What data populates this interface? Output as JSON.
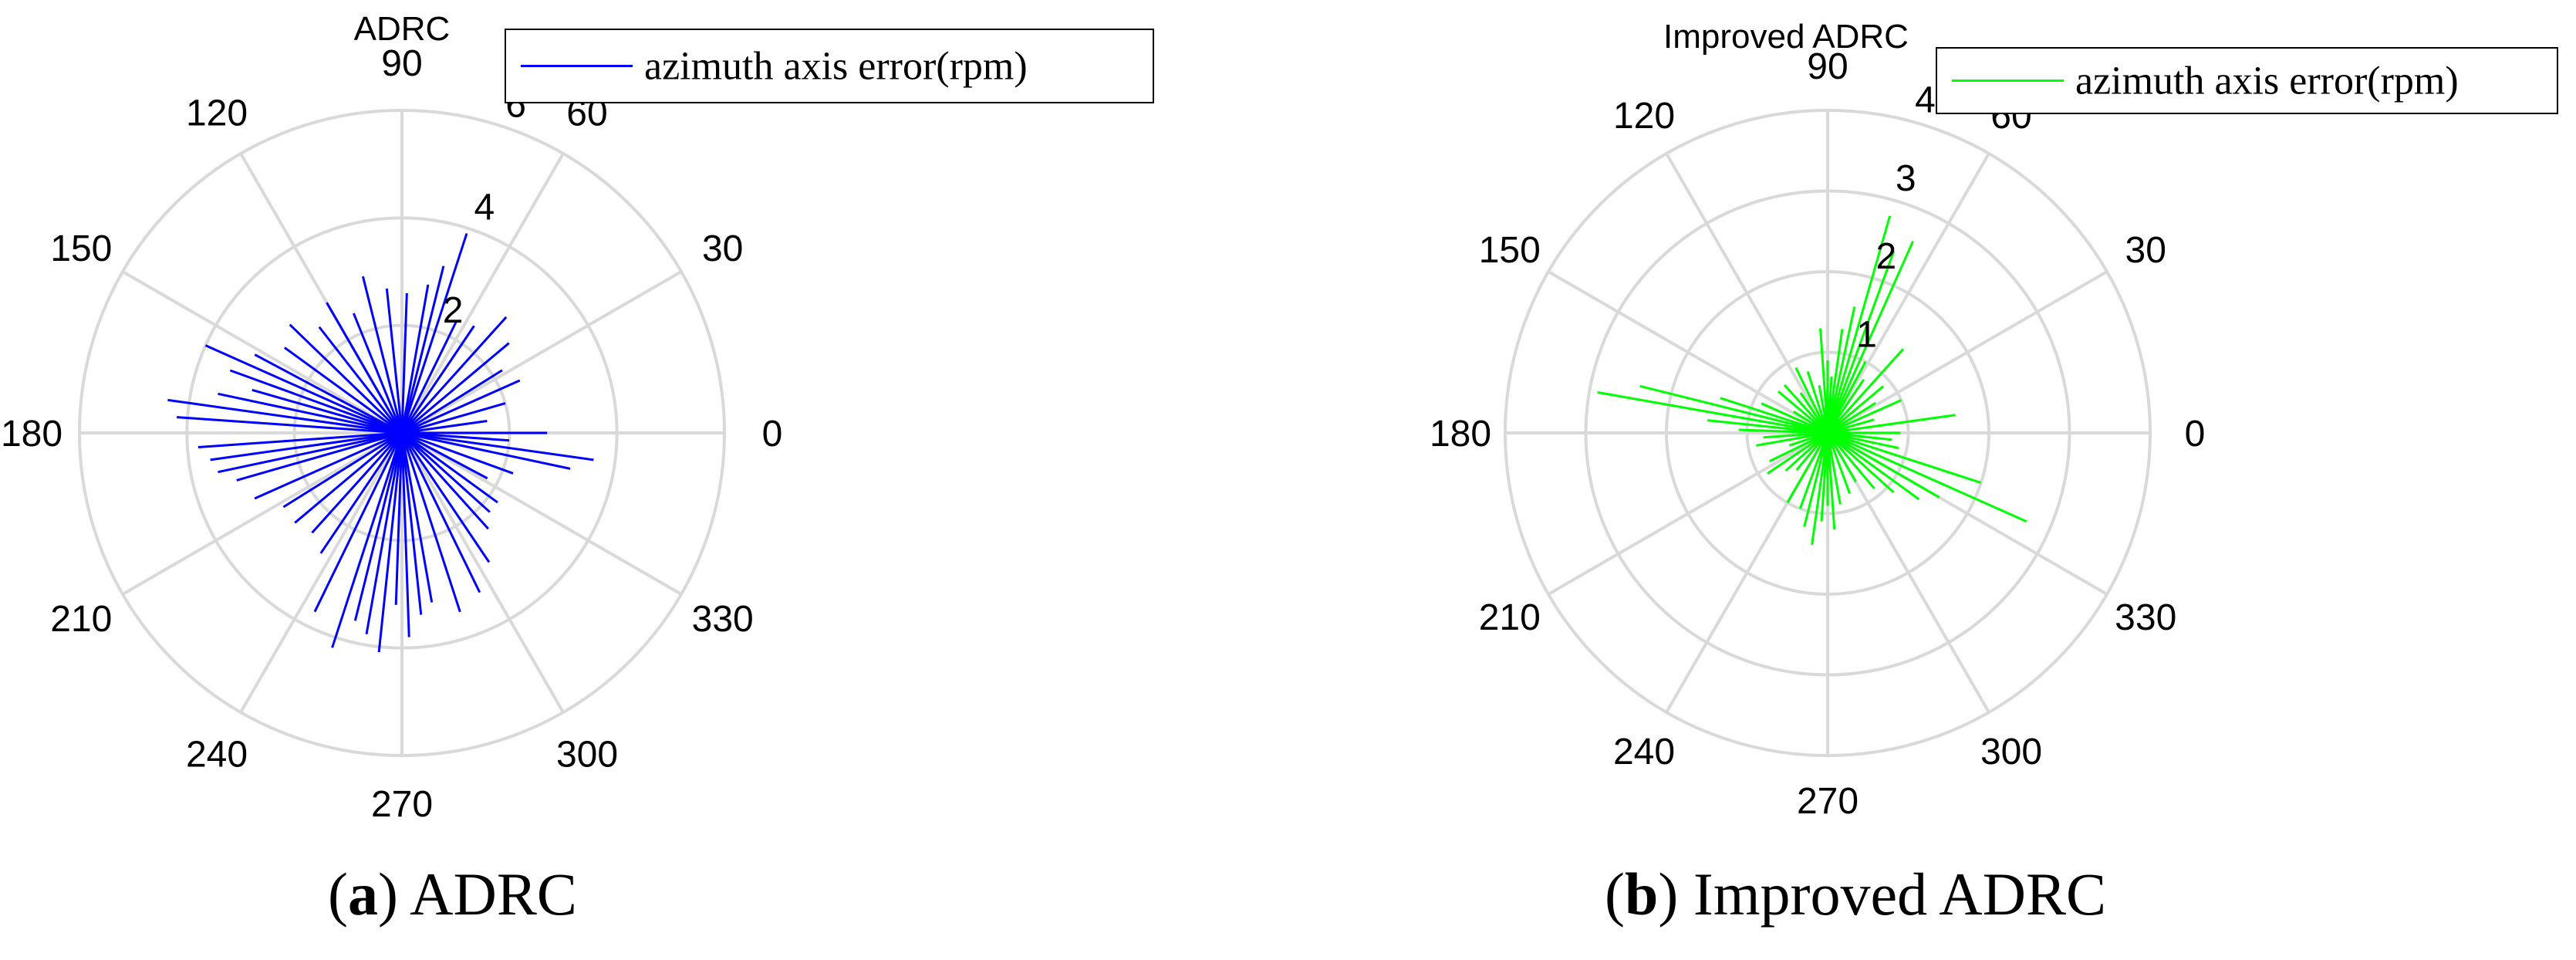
{
  "chart_data": [
    {
      "type": "polar",
      "title": "ADRC",
      "caption_letter": "a",
      "caption_text": ") ADRC",
      "angle_unit": "degrees",
      "angle_ticks": [
        "0",
        "30",
        "60",
        "90",
        "120",
        "150",
        "180",
        "210",
        "240",
        "270",
        "300",
        "330"
      ],
      "radial_ticks": [
        "2",
        "4",
        "6"
      ],
      "rlim": [
        0,
        6
      ],
      "grid": true,
      "legend_position": "top-right",
      "series": [
        {
          "name": "azimuth axis error(rpm)",
          "color": "#0000ff",
          "angles": [
            0,
            8,
            16,
            24,
            32,
            40,
            48,
            56,
            64,
            72,
            76,
            80,
            88,
            96,
            104,
            112,
            120,
            128,
            136,
            144,
            152,
            156,
            160,
            164,
            168,
            172,
            176,
            184,
            188,
            192,
            196,
            204,
            212,
            220,
            228,
            236,
            244,
            252,
            256,
            260,
            264,
            268,
            272,
            276,
            280,
            288,
            296,
            304,
            312,
            318,
            324,
            332,
            340,
            348,
            352,
            356
          ],
          "values": [
            2.7,
            1.6,
            2.0,
            2.4,
            2.2,
            2.6,
            2.9,
            2.4,
            2.3,
            3.9,
            3.2,
            2.8,
            2.6,
            2.7,
            3.0,
            2.4,
            2.8,
            2.5,
            2.9,
            2.7,
            3.1,
            4.0,
            3.4,
            2.9,
            3.5,
            4.4,
            4.2,
            3.8,
            3.6,
            3.5,
            3.2,
            3.0,
            2.6,
            2.6,
            2.5,
            2.7,
            3.7,
            4.2,
            3.6,
            3.8,
            4.1,
            3.2,
            3.8,
            3.4,
            3.2,
            3.5,
            3.3,
            2.9,
            2.4,
            2.2,
            2.2,
            1.8,
            2.2,
            3.2,
            3.6,
            2.0
          ]
        }
      ]
    },
    {
      "type": "polar",
      "title": "Improved ADRC",
      "caption_letter": "b",
      "caption_text": ") Improved ADRC",
      "angle_unit": "degrees",
      "angle_ticks": [
        "0",
        "30",
        "60",
        "90",
        "120",
        "150",
        "180",
        "210",
        "240",
        "270",
        "300",
        "330"
      ],
      "radial_ticks": [
        "1",
        "2",
        "3",
        "4"
      ],
      "rlim": [
        0,
        4
      ],
      "grid": true,
      "legend_position": "top-right",
      "series": [
        {
          "name": "azimuth axis error(rpm)",
          "color": "#00ff00",
          "angles": [
            0,
            8,
            16,
            24,
            32,
            40,
            48,
            56,
            62,
            66,
            70,
            74,
            78,
            82,
            86,
            90,
            94,
            100,
            108,
            116,
            124,
            132,
            140,
            148,
            156,
            162,
            166,
            170,
            174,
            178,
            184,
            190,
            198,
            206,
            214,
            222,
            230,
            240,
            250,
            256,
            262,
            266,
            270,
            274,
            280,
            290,
            300,
            310,
            318,
            324,
            330,
            336,
            342,
            348,
            354
          ],
          "values": [
            0.9,
            1.6,
            0.6,
            1.0,
            0.7,
            0.9,
            1.4,
            0.8,
            1.0,
            2.6,
            2.4,
            2.8,
            1.6,
            1.3,
            0.7,
            0.9,
            1.3,
            0.6,
            0.8,
            0.9,
            0.6,
            0.8,
            0.8,
            0.5,
            0.9,
            1.4,
            2.4,
            2.9,
            1.5,
            1.1,
            0.8,
            0.9,
            0.5,
            0.8,
            0.9,
            0.7,
            0.6,
            1.0,
            1.0,
            1.2,
            1.4,
            1.1,
            0.9,
            1.2,
            0.9,
            0.8,
            0.7,
            0.9,
            1.1,
            1.4,
            1.6,
            2.7,
            2.0,
            0.9,
            0.8
          ]
        }
      ]
    }
  ]
}
